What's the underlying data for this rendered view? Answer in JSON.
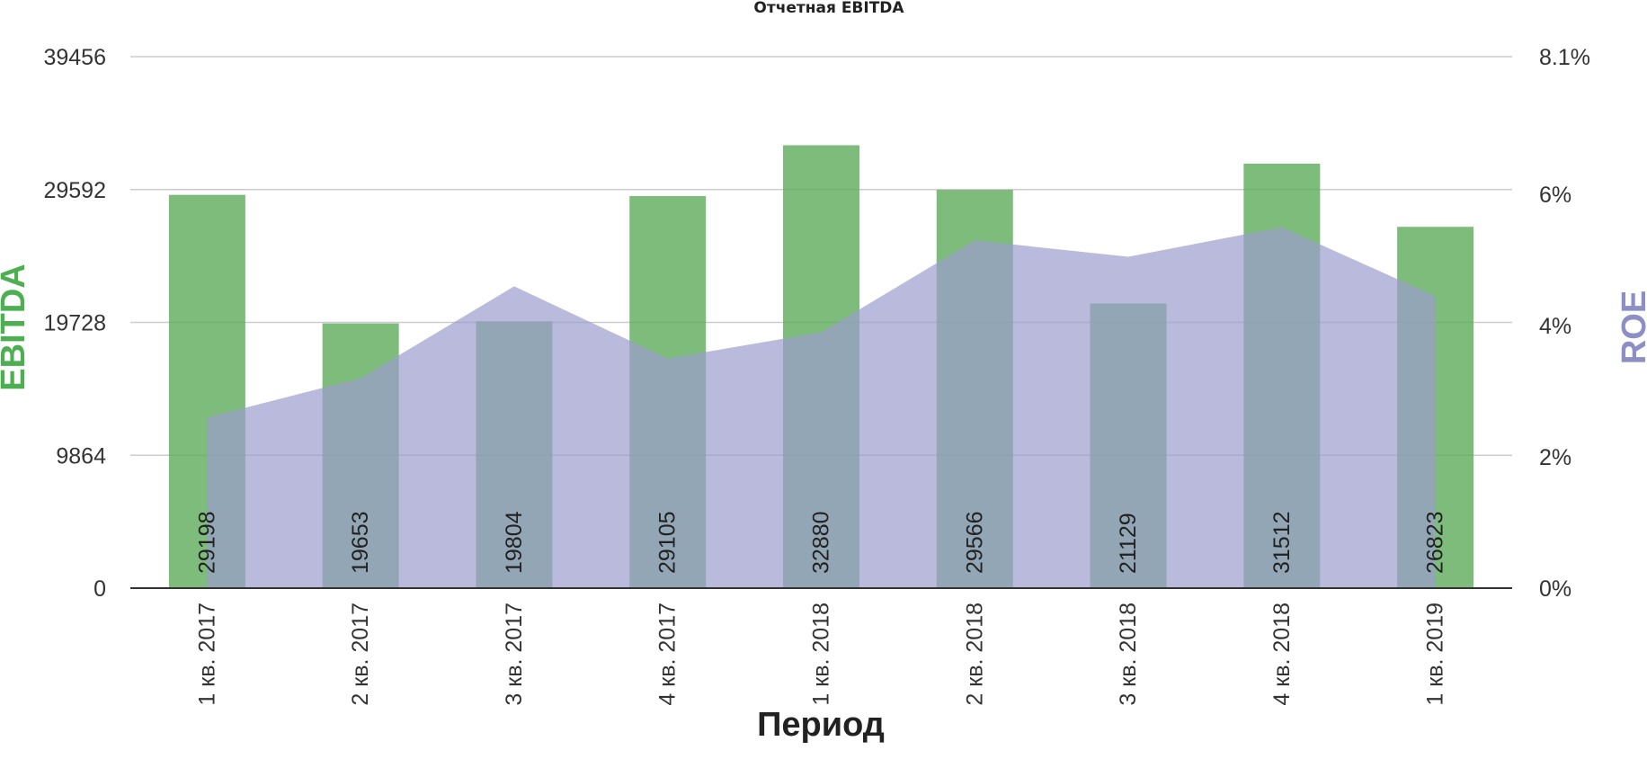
{
  "chart_data": {
    "type": "bar",
    "title": "Отчетная EBITDA",
    "xlabel": "Период",
    "ylabel": "EBITDA",
    "ylabel_right": "ROE",
    "categories": [
      "1 кв. 2017",
      "2 кв. 2017",
      "3 кв. 2017",
      "4 кв. 2017",
      "1 кв. 2018",
      "2 кв. 2018",
      "3 кв. 2018",
      "4 кв. 2018",
      "1 кв. 2019"
    ],
    "series": [
      {
        "name": "EBITDA",
        "type": "bar",
        "axis": "left",
        "color": "#5cab5a",
        "values": [
          29198,
          19653,
          19804,
          29105,
          32880,
          29566,
          21129,
          31512,
          26823
        ],
        "value_labels": [
          "29198",
          "19653",
          "19804",
          "29105",
          "32880",
          "29566",
          "21129",
          "31512",
          "26823"
        ]
      },
      {
        "name": "ROE",
        "type": "area",
        "axis": "right",
        "color": "#9c9ccf",
        "values": [
          2.6,
          3.2,
          4.6,
          3.5,
          3.9,
          5.3,
          5.05,
          5.5,
          4.45
        ]
      }
    ],
    "y_left": {
      "ticks": [
        "0",
        "9864",
        "19728",
        "29592",
        "39456"
      ],
      "tick_values": [
        0,
        9864,
        19728,
        29592,
        39456
      ],
      "ylim": [
        0,
        39456
      ],
      "label_color": "#4caf50"
    },
    "y_right": {
      "ticks": [
        "0%",
        "2%",
        "4%",
        "6%",
        "8.1%"
      ],
      "tick_values": [
        0,
        2,
        4,
        6,
        8.1
      ],
      "ylim": [
        0,
        8.1
      ],
      "label_color": "#8e8ec6"
    },
    "grid": true,
    "legend": "none"
  }
}
